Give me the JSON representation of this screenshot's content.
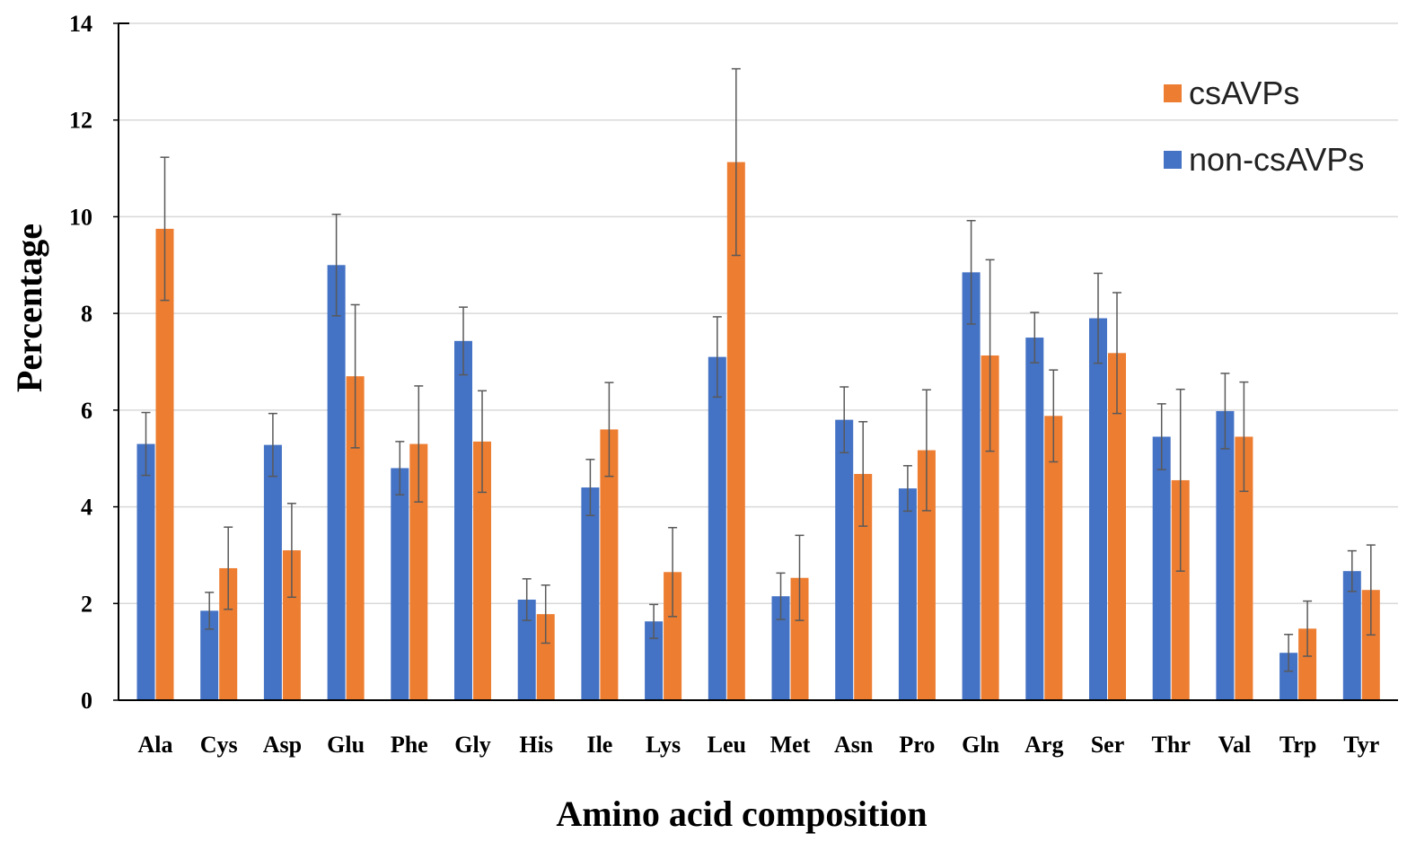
{
  "colors": {
    "non_csavps": "#4472C4",
    "csavps": "#ED7D31",
    "grid": "#D9D9D9",
    "axis": "#000000",
    "error_bar": "#595959"
  },
  "chart_data": {
    "type": "bar",
    "title": "",
    "xlabel": "Amino acid composition",
    "ylabel": "Percentage",
    "ylim": [
      0,
      14
    ],
    "yticks": [
      0,
      2,
      4,
      6,
      8,
      10,
      12,
      14
    ],
    "grid": true,
    "legend_position": "top-right",
    "categories": [
      "Ala",
      "Cys",
      "Asp",
      "Glu",
      "Phe",
      "Gly",
      "His",
      "Ile",
      "Lys",
      "Leu",
      "Met",
      "Asn",
      "Pro",
      "Gln",
      "Arg",
      "Ser",
      "Thr",
      "Val",
      "Trp",
      "Tyr"
    ],
    "series": [
      {
        "name": "non-csAVPs",
        "color_key": "non_csavps",
        "values": [
          5.3,
          1.85,
          5.28,
          9.0,
          4.8,
          7.43,
          2.08,
          4.4,
          1.63,
          7.1,
          2.15,
          5.8,
          4.38,
          8.85,
          7.5,
          7.9,
          5.45,
          5.98,
          0.98,
          2.67
        ],
        "errors": [
          0.65,
          0.38,
          0.65,
          1.05,
          0.55,
          0.7,
          0.43,
          0.58,
          0.35,
          0.83,
          0.48,
          0.68,
          0.47,
          1.07,
          0.52,
          0.93,
          0.68,
          0.78,
          0.38,
          0.42
        ]
      },
      {
        "name": "csAVPs",
        "color_key": "csavps",
        "values": [
          9.75,
          2.73,
          3.1,
          6.7,
          5.3,
          5.35,
          1.78,
          5.6,
          2.65,
          11.13,
          2.53,
          4.68,
          5.17,
          7.13,
          5.88,
          7.18,
          4.55,
          5.45,
          1.48,
          2.28
        ],
        "errors": [
          1.48,
          0.85,
          0.97,
          1.48,
          1.2,
          1.05,
          0.6,
          0.97,
          0.92,
          1.93,
          0.88,
          1.08,
          1.25,
          1.98,
          0.95,
          1.25,
          1.88,
          1.13,
          0.57,
          0.93
        ]
      }
    ]
  }
}
